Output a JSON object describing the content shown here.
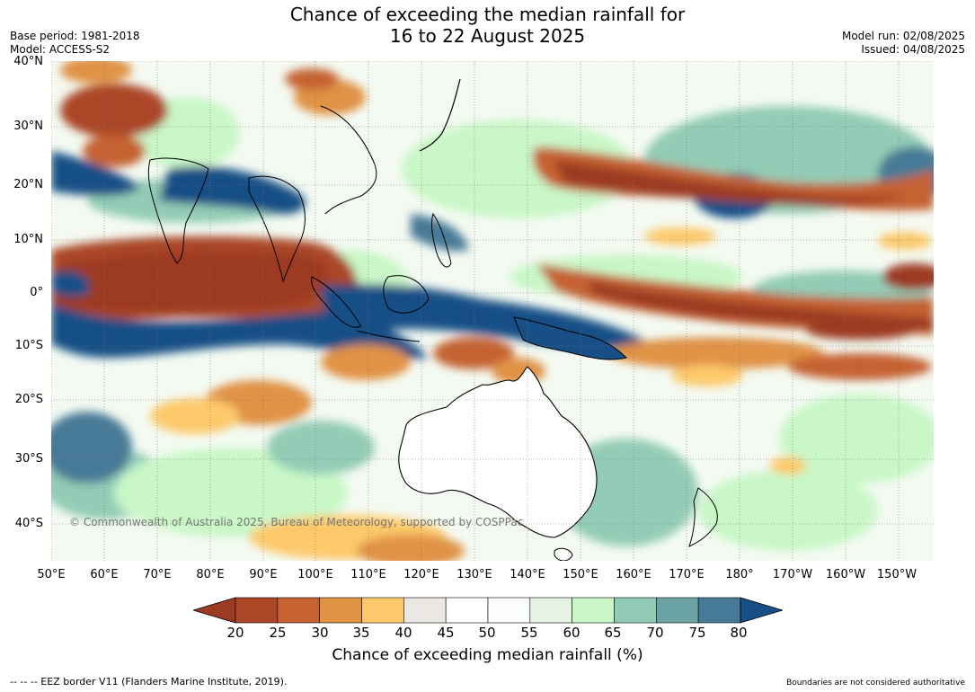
{
  "header": {
    "title_line1": "Chance of exceeding the median rainfall for",
    "title_line2": "16 to 22 August 2025",
    "base_period": "Base period: 1981-2018",
    "model": "Model: ACCESS-S2",
    "model_run": "Model run: 02/08/2025",
    "issued": "Issued: 04/08/2025"
  },
  "map": {
    "copyright": "© Commonwealth of Australia 2025, Bureau of Meteorology, supported by COSPPac",
    "lat_labels": [
      "40°N",
      "30°N",
      "20°N",
      "10°N",
      "0°",
      "10°S",
      "20°S",
      "30°S",
      "40°S"
    ],
    "lon_labels": [
      "50°E",
      "60°E",
      "70°E",
      "80°E",
      "90°E",
      "100°E",
      "110°E",
      "120°E",
      "130°E",
      "140°E",
      "150°E",
      "160°E",
      "170°E",
      "180°",
      "170°W",
      "160°W",
      "150°W"
    ],
    "ocean_base_color": "#f4faf2",
    "land_color": "#ffffff"
  },
  "colorbar": {
    "label": "Chance of exceeding median rainfall (%)",
    "ticks": [
      "20",
      "25",
      "30",
      "35",
      "40",
      "45",
      "50",
      "55",
      "60",
      "65",
      "70",
      "75",
      "80"
    ],
    "under_color": "#9c3b22",
    "over_color": "#184f86",
    "colors": [
      "#ab4727",
      "#c56230",
      "#e09245",
      "#fdc96a",
      "#ebe8e4",
      "#ffffff",
      "#fbfcfc",
      "#e6f4e6",
      "#c9f7c7",
      "#93ccb6",
      "#6ba2a4",
      "#477a97"
    ]
  },
  "footer": {
    "left": "--  --  -- EEZ border V11 (Flanders Marine Institute, 2019).",
    "right": "Boundaries are not considered authoritative"
  }
}
